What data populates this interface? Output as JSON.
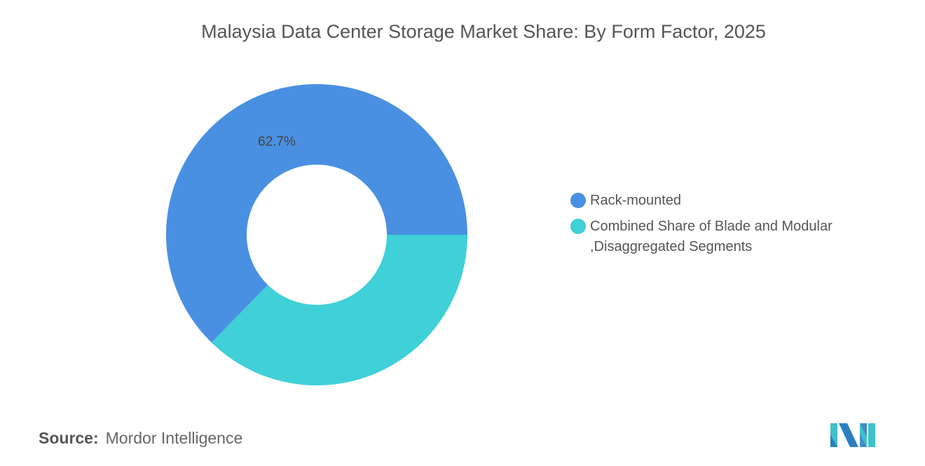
{
  "chart_data": {
    "type": "pie",
    "donut": true,
    "title": "Malaysia Data Center Storage Market Share: By Form Factor, 2025",
    "categories": [
      "Rack-mounted",
      "Combined Share of Blade and Modular ,Disaggregated Segments"
    ],
    "legend_lines": [
      [
        "Rack-mounted"
      ],
      [
        "Combined Share of Blade and Modular",
        ",Disaggregated Segments"
      ]
    ],
    "values": [
      62.7,
      37.3
    ],
    "data_labels": [
      "62.7%",
      ""
    ],
    "colors": [
      "#4a90e2",
      "#3fd0d8"
    ],
    "legend_position": "right"
  },
  "source": {
    "label": "Source:",
    "text": "Mordor Intelligence"
  },
  "logo": {
    "text": "Mordor Intelligence"
  }
}
